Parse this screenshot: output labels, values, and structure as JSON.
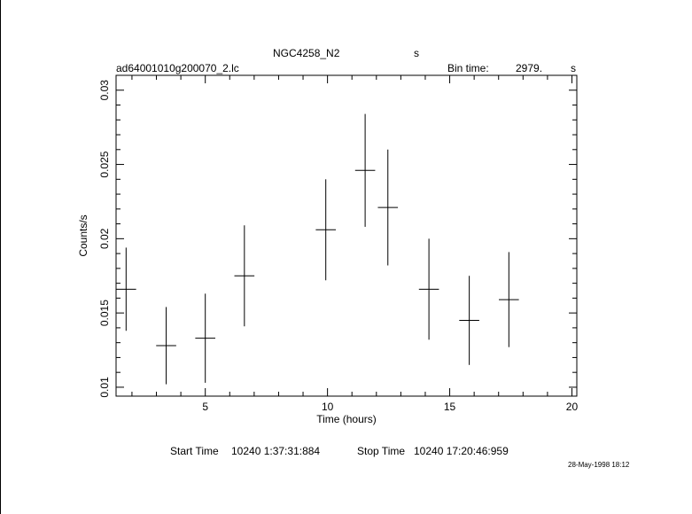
{
  "header": {
    "object": "NGC4258_N2",
    "object_unit": "s",
    "filename": "ad64001010g200070_2.lc",
    "bin_label": "Bin time:",
    "bin_value": "2979.",
    "bin_unit": "s"
  },
  "footer": {
    "start_label": "Start Time",
    "start_value": "10240  1:37:31:884",
    "stop_label": "Stop Time",
    "stop_value": "10240 17:20:46:959",
    "date_stamp": "28-May-1998 18:12"
  },
  "chart_data": {
    "type": "scatter",
    "xlabel": "Time (hours)",
    "ylabel": "Counts/s",
    "xlim": [
      1.35,
      20.2
    ],
    "ylim": [
      0.0094,
      0.031
    ],
    "x_ticks": [
      5,
      10,
      15,
      20
    ],
    "x_tick_labels": [
      "5",
      "10",
      "15",
      "20"
    ],
    "y_ticks": [
      0.01,
      0.015,
      0.02,
      0.025,
      0.03
    ],
    "y_tick_labels": [
      "0.01",
      "0.015",
      "0.02",
      "0.025",
      "0.03"
    ],
    "points": [
      {
        "x": 1.76,
        "xerr": 0.41,
        "y": 0.0166,
        "yerr": 0.0028
      },
      {
        "x": 3.4,
        "xerr": 0.41,
        "y": 0.0128,
        "yerr": 0.0026
      },
      {
        "x": 5.0,
        "xerr": 0.41,
        "y": 0.0133,
        "yerr": 0.003
      },
      {
        "x": 6.6,
        "xerr": 0.41,
        "y": 0.0175,
        "yerr": 0.0034
      },
      {
        "x": 9.93,
        "xerr": 0.41,
        "y": 0.0206,
        "yerr": 0.0034
      },
      {
        "x": 11.54,
        "xerr": 0.41,
        "y": 0.0246,
        "yerr": 0.0038
      },
      {
        "x": 12.47,
        "xerr": 0.41,
        "y": 0.0221,
        "yerr": 0.0039
      },
      {
        "x": 14.15,
        "xerr": 0.41,
        "y": 0.0166,
        "yerr": 0.0034
      },
      {
        "x": 15.8,
        "xerr": 0.41,
        "y": 0.0145,
        "yerr": 0.003
      },
      {
        "x": 17.42,
        "xerr": 0.41,
        "y": 0.0159,
        "yerr": 0.0032
      }
    ]
  }
}
